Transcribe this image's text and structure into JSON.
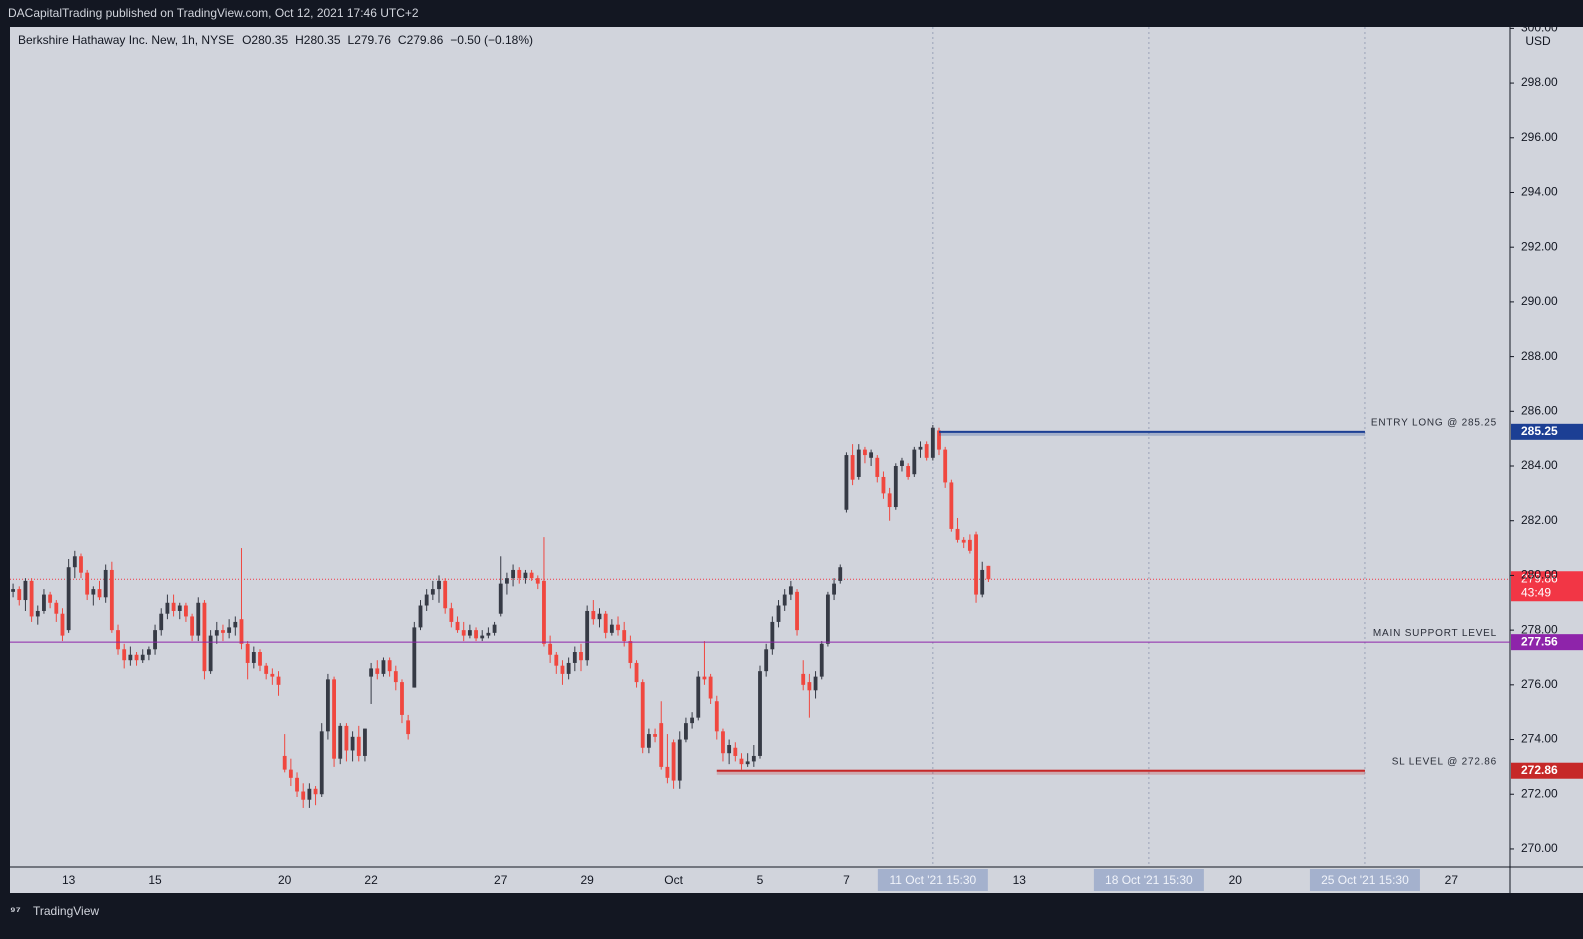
{
  "header": {
    "publisher": "DACapitalTrading published on TradingView.com, Oct 12, 2021 17:46 UTC+2"
  },
  "footer": {
    "brand": "TradingView"
  },
  "chart_data": {
    "type": "candlestick",
    "title": "Berkshire Hathaway Inc. New, 1h, NYSE",
    "ohlc_legend": [
      "O280.35",
      "H280.35",
      "L279.76",
      "C279.86",
      "−0.50 (−0.18%)"
    ],
    "currency": "USD",
    "up_color": "#363a45",
    "down_color": "#f0473f",
    "ohlc": [
      [
        279.4,
        279.7,
        279.2,
        279.5
      ],
      [
        279.5,
        279.6,
        278.9,
        279.1
      ],
      [
        279.1,
        279.9,
        278.7,
        279.8
      ],
      [
        279.8,
        279.9,
        278.3,
        278.5
      ],
      [
        278.5,
        278.9,
        278.2,
        278.7
      ],
      [
        278.7,
        279.5,
        278.6,
        279.3
      ],
      [
        279.3,
        279.4,
        278.8,
        279.0
      ],
      [
        279.0,
        279.1,
        278.3,
        278.6
      ],
      [
        278.6,
        278.8,
        277.6,
        277.8
      ],
      [
        278.0,
        280.6,
        277.9,
        280.3
      ],
      [
        280.3,
        280.9,
        279.9,
        280.7
      ],
      [
        280.7,
        280.8,
        279.9,
        280.1
      ],
      [
        280.1,
        280.2,
        279.1,
        279.3
      ],
      [
        279.3,
        279.6,
        278.9,
        279.5
      ],
      [
        279.5,
        279.8,
        279.1,
        279.2
      ],
      [
        279.2,
        280.4,
        279.0,
        280.2
      ],
      [
        280.2,
        280.5,
        277.9,
        278.0
      ],
      [
        278.0,
        278.2,
        277.1,
        277.3
      ],
      [
        277.3,
        277.5,
        276.6,
        276.9
      ],
      [
        276.9,
        277.4,
        276.7,
        277.1
      ],
      [
        277.1,
        277.2,
        276.7,
        276.9
      ],
      [
        276.9,
        277.3,
        276.8,
        277.1
      ],
      [
        277.1,
        277.4,
        276.9,
        277.3
      ],
      [
        277.3,
        278.2,
        277.1,
        278.0
      ],
      [
        278.0,
        278.8,
        277.8,
        278.6
      ],
      [
        278.6,
        279.3,
        278.4,
        279.0
      ],
      [
        279.0,
        279.3,
        278.5,
        278.7
      ],
      [
        278.7,
        279.0,
        278.4,
        278.9
      ],
      [
        278.9,
        279.0,
        278.3,
        278.5
      ],
      [
        278.5,
        278.6,
        277.6,
        277.8
      ],
      [
        277.8,
        279.2,
        277.6,
        279.0
      ],
      [
        279.0,
        279.1,
        276.2,
        276.5
      ],
      [
        276.5,
        278.0,
        276.4,
        277.8
      ],
      [
        277.8,
        278.3,
        277.5,
        278.0
      ],
      [
        278.0,
        278.2,
        277.6,
        277.9
      ],
      [
        277.9,
        278.4,
        277.7,
        278.1
      ],
      [
        278.1,
        278.5,
        277.8,
        278.3
      ],
      [
        278.4,
        281.0,
        277.3,
        277.5
      ],
      [
        277.5,
        277.6,
        276.2,
        276.8
      ],
      [
        276.8,
        277.4,
        276.6,
        277.2
      ],
      [
        277.2,
        277.3,
        276.5,
        276.7
      ],
      [
        276.7,
        276.8,
        276.2,
        276.4
      ],
      [
        276.4,
        276.6,
        276.0,
        276.3
      ],
      [
        276.3,
        276.5,
        275.6,
        276.0
      ],
      [
        273.4,
        274.2,
        272.8,
        272.9
      ],
      [
        272.9,
        273.3,
        272.3,
        272.6
      ],
      [
        272.6,
        272.8,
        271.9,
        272.1
      ],
      [
        272.1,
        272.4,
        271.5,
        271.8
      ],
      [
        271.8,
        272.4,
        271.5,
        272.2
      ],
      [
        272.2,
        272.3,
        271.6,
        272.0
      ],
      [
        272.0,
        274.6,
        271.9,
        274.3
      ],
      [
        274.3,
        276.4,
        274.0,
        276.2
      ],
      [
        276.2,
        276.3,
        273.0,
        273.3
      ],
      [
        273.3,
        274.6,
        273.1,
        274.5
      ],
      [
        274.5,
        274.6,
        273.2,
        273.6
      ],
      [
        273.6,
        274.3,
        273.2,
        274.1
      ],
      [
        274.1,
        274.5,
        273.2,
        273.4
      ],
      [
        273.4,
        274.4,
        273.2,
        274.4
      ],
      [
        276.3,
        276.8,
        275.3,
        276.6
      ],
      [
        276.6,
        276.9,
        276.2,
        276.4
      ],
      [
        276.4,
        277.0,
        276.3,
        276.9
      ],
      [
        276.9,
        277.0,
        276.3,
        276.5
      ],
      [
        276.5,
        276.7,
        275.8,
        276.1
      ],
      [
        276.1,
        276.2,
        274.6,
        274.9
      ],
      [
        274.7,
        274.9,
        274.0,
        274.2
      ],
      [
        275.9,
        278.3,
        275.9,
        278.1
      ],
      [
        278.1,
        279.1,
        278.0,
        278.9
      ],
      [
        278.9,
        279.5,
        278.7,
        279.3
      ],
      [
        279.3,
        279.8,
        279.1,
        279.5
      ],
      [
        279.5,
        280.0,
        279.0,
        279.8
      ],
      [
        279.8,
        279.9,
        278.6,
        278.8
      ],
      [
        278.8,
        279.0,
        278.1,
        278.3
      ],
      [
        278.3,
        278.5,
        277.9,
        278.0
      ],
      [
        278.0,
        278.3,
        277.6,
        277.8
      ],
      [
        277.8,
        278.2,
        277.7,
        278.0
      ],
      [
        278.0,
        278.1,
        277.6,
        277.7
      ],
      [
        277.7,
        278.0,
        277.6,
        277.8
      ],
      [
        277.8,
        278.1,
        277.7,
        277.9
      ],
      [
        277.9,
        278.3,
        277.8,
        278.2
      ],
      [
        278.6,
        280.7,
        278.5,
        279.7
      ],
      [
        279.7,
        280.1,
        279.3,
        279.9
      ],
      [
        279.9,
        280.4,
        279.6,
        280.2
      ],
      [
        280.2,
        280.3,
        279.7,
        279.9
      ],
      [
        279.9,
        280.2,
        279.7,
        280.1
      ],
      [
        280.1,
        280.2,
        279.8,
        279.9
      ],
      [
        279.9,
        280.0,
        279.5,
        279.7
      ],
      [
        279.8,
        281.4,
        277.4,
        277.5
      ],
      [
        277.5,
        277.8,
        276.8,
        277.1
      ],
      [
        277.1,
        277.2,
        276.4,
        276.7
      ],
      [
        276.7,
        276.9,
        276.0,
        276.4
      ],
      [
        276.4,
        277.0,
        276.2,
        276.8
      ],
      [
        276.8,
        277.4,
        276.5,
        277.2
      ],
      [
        277.2,
        277.5,
        276.5,
        276.9
      ],
      [
        276.9,
        278.9,
        276.7,
        278.7
      ],
      [
        278.7,
        279.1,
        278.2,
        278.4
      ],
      [
        278.4,
        278.8,
        278.1,
        278.6
      ],
      [
        278.6,
        278.7,
        277.7,
        277.9
      ],
      [
        277.9,
        278.4,
        277.8,
        278.2
      ],
      [
        278.2,
        278.5,
        277.8,
        278.0
      ],
      [
        278.0,
        278.3,
        277.4,
        277.6
      ],
      [
        277.6,
        277.8,
        276.6,
        276.8
      ],
      [
        276.8,
        276.9,
        275.9,
        276.1
      ],
      [
        276.1,
        276.2,
        273.5,
        273.7
      ],
      [
        273.7,
        274.4,
        273.5,
        274.2
      ],
      [
        274.2,
        274.4,
        273.9,
        274.1
      ],
      [
        274.6,
        275.4,
        272.9,
        273.0
      ],
      [
        273.0,
        274.2,
        272.4,
        272.6
      ],
      [
        273.9,
        274.0,
        272.2,
        272.5
      ],
      [
        272.5,
        274.3,
        272.2,
        274.0
      ],
      [
        274.0,
        274.8,
        273.9,
        274.6
      ],
      [
        274.6,
        275.0,
        274.4,
        274.8
      ],
      [
        274.8,
        276.5,
        274.7,
        276.3
      ],
      [
        276.3,
        277.6,
        276.0,
        276.2
      ],
      [
        276.3,
        276.4,
        275.3,
        275.5
      ],
      [
        275.4,
        275.6,
        274.0,
        274.3
      ],
      [
        274.3,
        274.4,
        273.2,
        273.5
      ],
      [
        273.5,
        274.0,
        273.1,
        273.8
      ],
      [
        273.7,
        273.9,
        273.2,
        273.4
      ],
      [
        273.3,
        273.5,
        272.9,
        273.1
      ],
      [
        273.1,
        273.5,
        273.0,
        273.2
      ],
      [
        273.2,
        273.8,
        273.0,
        273.4
      ],
      [
        273.4,
        276.7,
        273.3,
        276.5
      ],
      [
        276.5,
        277.5,
        276.3,
        277.3
      ],
      [
        277.3,
        278.5,
        277.1,
        278.3
      ],
      [
        278.3,
        279.1,
        278.1,
        278.9
      ],
      [
        278.9,
        279.5,
        278.7,
        279.3
      ],
      [
        279.3,
        279.8,
        279.1,
        279.6
      ],
      [
        279.4,
        279.5,
        277.8,
        278.0
      ],
      [
        276.4,
        276.9,
        275.8,
        276.0
      ],
      [
        276.1,
        276.4,
        274.8,
        275.8
      ],
      [
        275.8,
        276.5,
        275.5,
        276.3
      ],
      [
        276.3,
        277.6,
        276.2,
        277.5
      ],
      [
        277.5,
        279.4,
        277.4,
        279.3
      ],
      [
        279.3,
        279.9,
        279.1,
        279.7
      ],
      [
        279.8,
        280.4,
        279.7,
        280.3
      ],
      [
        282.4,
        284.5,
        282.3,
        284.4
      ],
      [
        284.4,
        284.8,
        283.3,
        283.5
      ],
      [
        283.6,
        284.8,
        283.5,
        284.6
      ],
      [
        284.6,
        284.7,
        284.1,
        284.4
      ],
      [
        284.3,
        284.6,
        284.0,
        284.5
      ],
      [
        284.3,
        284.4,
        283.4,
        283.6
      ],
      [
        283.6,
        283.8,
        282.8,
        283.0
      ],
      [
        283.0,
        283.2,
        282.0,
        282.5
      ],
      [
        282.5,
        284.1,
        282.4,
        284.0
      ],
      [
        284.0,
        284.3,
        283.8,
        284.2
      ],
      [
        284.0,
        284.1,
        283.5,
        283.6
      ],
      [
        283.7,
        284.7,
        283.6,
        284.6
      ],
      [
        284.6,
        284.9,
        284.3,
        284.7
      ],
      [
        284.8,
        284.9,
        284.2,
        284.3
      ],
      [
        284.3,
        285.5,
        284.2,
        285.4
      ],
      [
        285.3,
        285.4,
        284.4,
        284.6
      ],
      [
        284.6,
        284.7,
        283.2,
        283.4
      ],
      [
        283.4,
        283.5,
        281.6,
        281.7
      ],
      [
        281.7,
        282.1,
        281.2,
        281.3
      ],
      [
        281.3,
        281.4,
        281.0,
        281.2
      ],
      [
        281.3,
        281.5,
        280.8,
        280.9
      ],
      [
        281.5,
        281.6,
        279.0,
        279.3
      ],
      [
        279.3,
        280.5,
        279.2,
        280.2
      ],
      [
        280.35,
        280.35,
        279.76,
        279.86
      ]
    ],
    "xlim": [
      -0.5,
      242.5
    ],
    "xticks": [
      {
        "value": 9,
        "label": "13"
      },
      {
        "value": 23,
        "label": "15"
      },
      {
        "value": 44,
        "label": "20"
      },
      {
        "value": 58,
        "label": "22"
      },
      {
        "value": 79,
        "label": "27"
      },
      {
        "value": 93,
        "label": "29"
      },
      {
        "value": 107,
        "label": "Oct"
      },
      {
        "value": 121,
        "label": "5"
      },
      {
        "value": 135,
        "label": "7"
      },
      {
        "value": 149,
        "label": "11 Oct '21  15:30",
        "highlight": true
      },
      {
        "value": 163,
        "label": "13"
      },
      {
        "value": 184,
        "label": "18 Oct '21  15:30",
        "highlight": true
      },
      {
        "value": 198,
        "label": "20"
      },
      {
        "value": 219,
        "label": "25 Oct '21  15:30",
        "highlight": true
      },
      {
        "value": 233,
        "label": "27"
      }
    ],
    "ylim": [
      269.34,
      300.05
    ],
    "yticks": [
      {
        "value": 270,
        "label": "270.00"
      },
      {
        "value": 272,
        "label": "272.00"
      },
      {
        "value": 274,
        "label": "274.00"
      },
      {
        "value": 276,
        "label": "276.00"
      },
      {
        "value": 278,
        "label": "278.00"
      },
      {
        "value": 280,
        "label": "280.00"
      },
      {
        "value": 282,
        "label": "282.00"
      },
      {
        "value": 284,
        "label": "284.00"
      },
      {
        "value": 286,
        "label": "286.00"
      },
      {
        "value": 288,
        "label": "288.00"
      },
      {
        "value": 290,
        "label": "290.00"
      },
      {
        "value": 292,
        "label": "292.00"
      },
      {
        "value": 294,
        "label": "294.00"
      },
      {
        "value": 296,
        "label": "296.00"
      },
      {
        "value": 298,
        "label": "298.00"
      },
      {
        "value": 300,
        "label": "300.00"
      }
    ],
    "levels": [
      {
        "name": "ENTRY LONG @ 285.25",
        "value": 285.25,
        "color": "#1c3f94",
        "from": 150,
        "to": 219
      },
      {
        "name": "MAIN SUPPORT LEVEL",
        "value": 277.56,
        "color": "#8e24aa"
      },
      {
        "name": "SL LEVEL @ 272.86",
        "value": 272.86,
        "color": "#c62828",
        "from": 114,
        "to": 219
      }
    ],
    "last_price": {
      "value": 279.86,
      "countdown": "43:49",
      "color": "#f23645"
    }
  }
}
